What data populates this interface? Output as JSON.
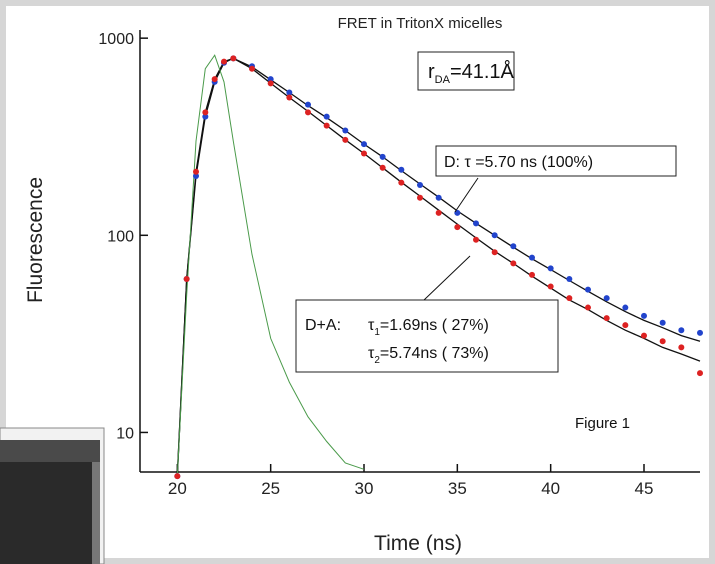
{
  "chart_data": {
    "type": "scatter",
    "title": "FRET in TritonX micelles",
    "x_label": "Time (ns)",
    "y_label": "Fluorescence",
    "xlim": [
      18,
      48
    ],
    "xticks": [
      20,
      25,
      30,
      35,
      40,
      45
    ],
    "ylim": [
      6.3,
      1100
    ],
    "yticks": [
      10,
      100,
      1000
    ],
    "log_y": true,
    "annotations": {
      "distance": {
        "symbol": "r",
        "sub": "DA",
        "text": "=41.1Å"
      },
      "donor": "D:  τ =5.70 ns (100%)",
      "donor_acceptor": {
        "label": "D+A:",
        "lines": [
          {
            "symbol": "τ",
            "sub": "1",
            "text": "=1.69ns (  27%)"
          },
          {
            "symbol": "τ",
            "sub": "2",
            "text": "=5.74ns (  73%)"
          }
        ]
      },
      "figure": "Figure 1"
    },
    "x": [
      20,
      20.5,
      21,
      21.5,
      22,
      22.5,
      23,
      24,
      25,
      26,
      27,
      28,
      29,
      30,
      31,
      32,
      33,
      34,
      35,
      36,
      37,
      38,
      39,
      40,
      41,
      42,
      43,
      44,
      45,
      46,
      47,
      48
    ],
    "series": [
      {
        "color": "#2244cc",
        "style": "points",
        "values": [
          6,
          60,
          200,
          400,
          600,
          750,
          790,
          720,
          620,
          530,
          460,
          400,
          340,
          290,
          250,
          215,
          180,
          155,
          130,
          115,
          100,
          88,
          77,
          68,
          60,
          53,
          48,
          43,
          39,
          36,
          33,
          32
        ]
      },
      {
        "color": "#dd2222",
        "style": "points",
        "values": [
          6,
          60,
          210,
          420,
          620,
          760,
          790,
          700,
          590,
          500,
          420,
          360,
          305,
          260,
          220,
          185,
          155,
          130,
          110,
          95,
          82,
          72,
          63,
          55,
          48,
          43,
          38,
          35,
          31,
          29,
          27,
          20
        ]
      },
      {
        "color": "#111111",
        "style": "line",
        "values": [
          6,
          60,
          200,
          400,
          600,
          750,
          790,
          715,
          615,
          530,
          455,
          395,
          340,
          290,
          250,
          213,
          182,
          156,
          133,
          115,
          100,
          87,
          76,
          67,
          59,
          52,
          46,
          41,
          37,
          34,
          31,
          29
        ]
      },
      {
        "color": "#111111",
        "style": "line",
        "values": [
          6,
          60,
          210,
          420,
          620,
          760,
          790,
          700,
          590,
          500,
          425,
          360,
          305,
          260,
          220,
          186,
          158,
          134,
          114,
          97,
          83,
          72,
          62,
          54,
          47,
          42,
          37,
          33,
          30,
          27,
          25,
          23
        ]
      },
      {
        "color": "#4a9a4a",
        "style": "line",
        "values": [
          6,
          50,
          300,
          700,
          820,
          600,
          300,
          80,
          30,
          18,
          12,
          9,
          7,
          6.5,
          null,
          null,
          null,
          null,
          null,
          null,
          null,
          null,
          null,
          null,
          null,
          null,
          null,
          null,
          null,
          null,
          null,
          null
        ]
      }
    ]
  }
}
